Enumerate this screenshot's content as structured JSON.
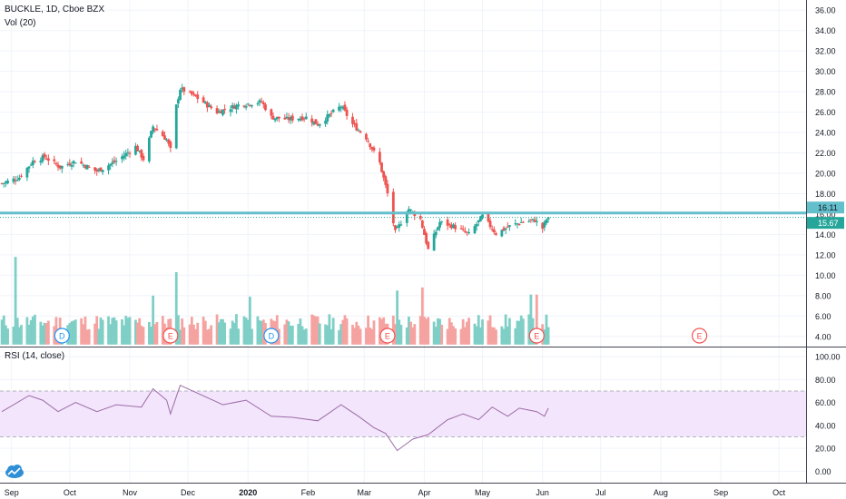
{
  "header": {
    "symbol_line": "BUCKLE, 1D, Cboe BZX",
    "volume_label": "Vol (20)",
    "rsi_label": "RSI (14, close)"
  },
  "colors": {
    "up": "#26a69a",
    "down": "#ef5350",
    "up_vol": "#7fcfc6",
    "down_vol": "#f5a3a1",
    "support_line": "#64bfcc",
    "last_price": "#26a69a",
    "rsi_line": "#9c6ba8",
    "rsi_band": "#f3e5fb",
    "grid": "#f0f3fa",
    "axis_text": "#131722"
  },
  "icons": {
    "logo": "tradingview-cloud-logo"
  },
  "markers": [
    {
      "letter": "D",
      "date": "2019-09-27",
      "type": "dividend"
    },
    {
      "letter": "E",
      "date": "2019-11-22",
      "type": "earnings"
    },
    {
      "letter": "D",
      "date": "2020-01-13",
      "type": "dividend"
    },
    {
      "letter": "E",
      "date": "2020-03-13",
      "type": "earnings"
    },
    {
      "letter": "E",
      "date": "2020-05-29",
      "type": "earnings"
    },
    {
      "letter": "E",
      "date": "2020-08-21",
      "type": "earnings"
    }
  ],
  "chart_data": {
    "type": "candlestick",
    "title": "BUCKLE, 1D, Cboe BZX",
    "price_axis": {
      "ticks": [
        "36.00",
        "34.00",
        "32.00",
        "30.00",
        "28.00",
        "26.00",
        "24.00",
        "22.00",
        "20.00",
        "18.00",
        "16.00",
        "14.00",
        "12.00",
        "10.00",
        "8.00",
        "6.00",
        "4.00"
      ],
      "range": [
        3.0,
        37.0
      ]
    },
    "time_axis": {
      "labels": [
        "Sep",
        "Oct",
        "Nov",
        "Dec",
        "2020",
        "Feb",
        "Mar",
        "Apr",
        "May",
        "Jun",
        "Jul",
        "Aug",
        "Sep",
        "Oct"
      ],
      "range": [
        "2019-08-26",
        "2020-10-15"
      ]
    },
    "support_level": 16.11,
    "last_price": 15.67,
    "close_path": [
      [
        "2019-08-27",
        19.0
      ],
      [
        "2019-09-05",
        19.6
      ],
      [
        "2019-09-12",
        21.2
      ],
      [
        "2019-09-18",
        21.6
      ],
      [
        "2019-09-26",
        20.6
      ],
      [
        "2019-10-04",
        21.2
      ],
      [
        "2019-10-15",
        20.2
      ],
      [
        "2019-10-25",
        21.2
      ],
      [
        "2019-11-04",
        22.6
      ],
      [
        "2019-11-08",
        21.4
      ],
      [
        "2019-11-13",
        24.6
      ],
      [
        "2019-11-20",
        23.3
      ],
      [
        "2019-11-22",
        22.3
      ],
      [
        "2019-11-25",
        26.6
      ],
      [
        "2019-11-27",
        28.3
      ],
      [
        "2019-12-05",
        27.5
      ],
      [
        "2019-12-16",
        26.0
      ],
      [
        "2019-12-27",
        26.7
      ],
      [
        "2020-01-08",
        27.0
      ],
      [
        "2020-01-13",
        25.5
      ],
      [
        "2020-01-21",
        25.3
      ],
      [
        "2020-01-31",
        25.5
      ],
      [
        "2020-02-06",
        24.8
      ],
      [
        "2020-02-18",
        26.6
      ],
      [
        "2020-02-24",
        24.8
      ],
      [
        "2020-03-02",
        23.5
      ],
      [
        "2020-03-09",
        21.0
      ],
      [
        "2020-03-13",
        18.0
      ],
      [
        "2020-03-17",
        14.2
      ],
      [
        "2020-03-24",
        16.5
      ],
      [
        "2020-03-30",
        15.5
      ],
      [
        "2020-04-03",
        12.5
      ],
      [
        "2020-04-09",
        15.2
      ],
      [
        "2020-04-16",
        14.8
      ],
      [
        "2020-04-24",
        14.0
      ],
      [
        "2020-05-01",
        15.8
      ],
      [
        "2020-05-08",
        14.1
      ],
      [
        "2020-05-15",
        14.8
      ],
      [
        "2020-05-21",
        15.2
      ],
      [
        "2020-05-28",
        15.4
      ],
      [
        "2020-06-01",
        14.6
      ],
      [
        "2020-06-04",
        15.9
      ]
    ],
    "volume": {
      "label": "Vol (20)",
      "axis_ticks": [
        "8.00",
        "6.00",
        "4.00"
      ],
      "range": [
        3.2,
        12.5
      ],
      "notable_spikes": [
        [
          "2019-09-03",
          11.8
        ],
        [
          "2019-11-13",
          8.0
        ],
        [
          "2019-11-25",
          10.3
        ],
        [
          "2020-01-02",
          7.9
        ],
        [
          "2020-03-18",
          8.5
        ],
        [
          "2020-03-31",
          8.8
        ],
        [
          "2020-05-26",
          8.1
        ],
        [
          "2020-05-29",
          8.1
        ]
      ]
    },
    "rsi": {
      "label": "RSI (14, close)",
      "axis_ticks": [
        "100.00",
        "80.00",
        "60.00",
        "40.00",
        "20.00",
        "0.00"
      ],
      "range": [
        -10,
        108
      ],
      "band": [
        30,
        70
      ],
      "path": [
        [
          "2019-08-27",
          52
        ],
        [
          "2019-09-10",
          66
        ],
        [
          "2019-09-17",
          62
        ],
        [
          "2019-09-25",
          52
        ],
        [
          "2019-10-04",
          60
        ],
        [
          "2019-10-15",
          52
        ],
        [
          "2019-10-25",
          58
        ],
        [
          "2019-11-07",
          56
        ],
        [
          "2019-11-13",
          72
        ],
        [
          "2019-11-20",
          62
        ],
        [
          "2019-11-22",
          50
        ],
        [
          "2019-11-27",
          75
        ],
        [
          "2019-12-10",
          65
        ],
        [
          "2019-12-19",
          58
        ],
        [
          "2019-12-31",
          62
        ],
        [
          "2020-01-13",
          48
        ],
        [
          "2020-01-24",
          47
        ],
        [
          "2020-02-06",
          44
        ],
        [
          "2020-02-18",
          58
        ],
        [
          "2020-02-27",
          48
        ],
        [
          "2020-03-06",
          38
        ],
        [
          "2020-03-12",
          33
        ],
        [
          "2020-03-18",
          18
        ],
        [
          "2020-03-26",
          28
        ],
        [
          "2020-04-03",
          32
        ],
        [
          "2020-04-13",
          45
        ],
        [
          "2020-04-21",
          50
        ],
        [
          "2020-04-29",
          45
        ],
        [
          "2020-05-06",
          56
        ],
        [
          "2020-05-14",
          48
        ],
        [
          "2020-05-20",
          55
        ],
        [
          "2020-05-29",
          52
        ],
        [
          "2020-06-02",
          48
        ],
        [
          "2020-06-04",
          55
        ]
      ]
    },
    "grid": true
  }
}
